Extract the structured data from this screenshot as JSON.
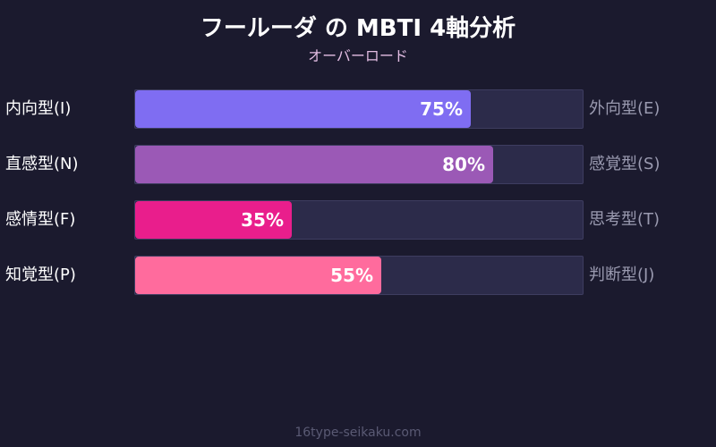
{
  "header": {
    "title": "フールーダ の MBTI 4軸分析",
    "subtitle": "オーバーロード"
  },
  "footer": {
    "watermark": "16type-seikaku.com"
  },
  "chart_data": {
    "type": "bar",
    "orientation": "horizontal",
    "title": "フールーダ の MBTI 4軸分析",
    "subtitle": "オーバーロード",
    "xlim": [
      0,
      100
    ],
    "grid": false,
    "legend": "none",
    "rows": [
      {
        "left_label": "内向型(I)",
        "right_label": "外向型(E)",
        "value": 75,
        "value_label": "75%",
        "color": "#7f6df2"
      },
      {
        "left_label": "直感型(N)",
        "right_label": "感覚型(S)",
        "value": 80,
        "value_label": "80%",
        "color": "#9b59b6"
      },
      {
        "left_label": "感情型(F)",
        "right_label": "思考型(T)",
        "value": 35,
        "value_label": "35%",
        "color": "#e91e8c"
      },
      {
        "left_label": "知覚型(P)",
        "right_label": "判断型(J)",
        "value": 55,
        "value_label": "55%",
        "color": "#ff6b9d"
      }
    ]
  },
  "colors": {
    "background": "#1b1a2e",
    "track": "#2c2b4a",
    "subtitle": "#e3bde3",
    "right_label": "#9a9ab0"
  }
}
